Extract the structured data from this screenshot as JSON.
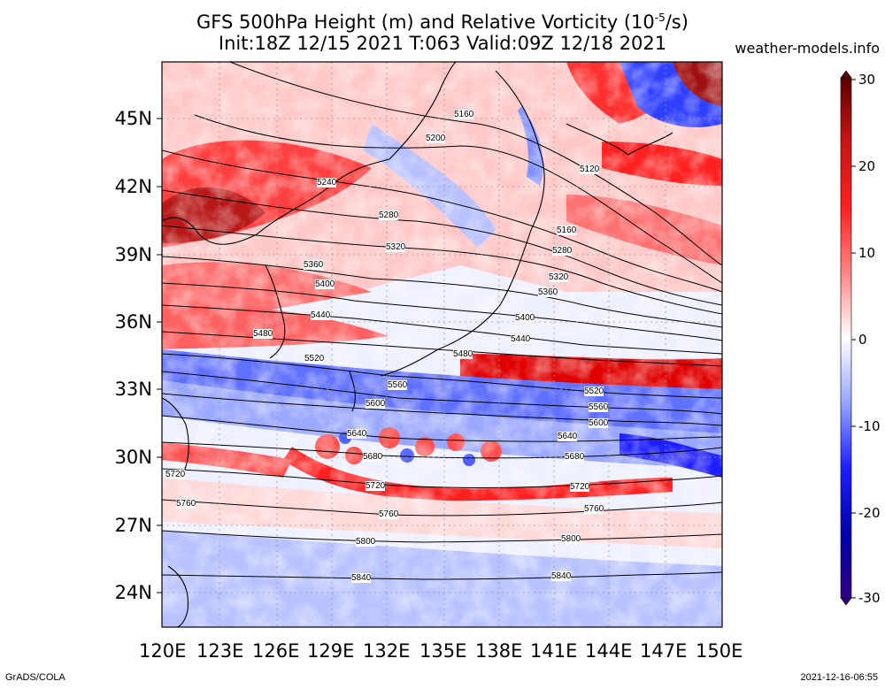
{
  "header": {
    "title_prefix": "GFS 500hPa Height (m) and Relative Vorticity (10",
    "title_exp": "-5",
    "title_suffix": "/s)",
    "subtitle": "Init:18Z 12/15 2021 T:063 Valid:09Z 12/18 2021",
    "site": "weather-models.info"
  },
  "footer": {
    "left": "GrADS/COLA",
    "right": "2021-12-16-06:55"
  },
  "map": {
    "lon_range": [
      120,
      150
    ],
    "lat_range": [
      22.5,
      47.5
    ],
    "lon_ticks": [
      "120E",
      "123E",
      "126E",
      "129E",
      "132E",
      "135E",
      "138E",
      "141E",
      "144E",
      "147E",
      "150E"
    ],
    "lat_ticks": [
      "24N",
      "27N",
      "30N",
      "33N",
      "36N",
      "39N",
      "42N",
      "45N"
    ],
    "height_contours": [
      {
        "label": "5160"
      },
      {
        "label": "5200"
      },
      {
        "label": "5240"
      },
      {
        "label": "5280"
      },
      {
        "label": "5320"
      },
      {
        "label": "5360"
      },
      {
        "label": "5400"
      },
      {
        "label": "5440"
      },
      {
        "label": "5480"
      },
      {
        "label": "5520"
      },
      {
        "label": "5560"
      },
      {
        "label": "5600"
      },
      {
        "label": "5640"
      },
      {
        "label": "5680"
      },
      {
        "label": "5720"
      },
      {
        "label": "5760"
      },
      {
        "label": "5800"
      },
      {
        "label": "5840"
      },
      {
        "label": "5120"
      }
    ]
  },
  "colorbar": {
    "ticks": [
      "30",
      "20",
      "10",
      "0",
      "-10",
      "-20",
      "-30"
    ],
    "colors": [
      "#5a0000",
      "#8b0000",
      "#c81414",
      "#ff0000",
      "#ff5a5a",
      "#ff9a9a",
      "#ffd0d0",
      "#ffffff",
      "#d0d8ff",
      "#9aaaff",
      "#5a6aff",
      "#1e1eff",
      "#0000aa",
      "#300080"
    ]
  }
}
